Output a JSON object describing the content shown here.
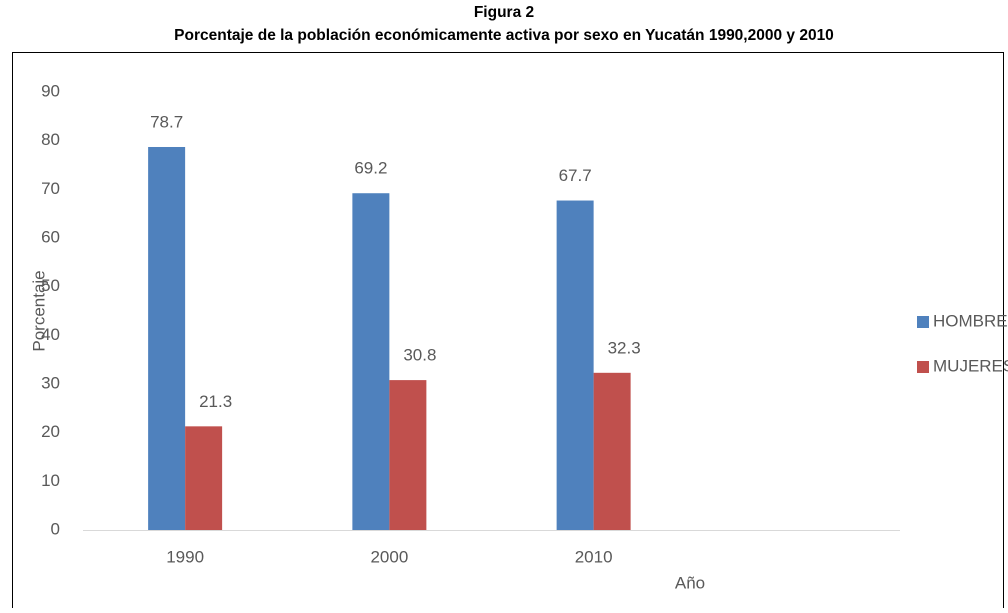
{
  "chart_data": {
    "type": "bar",
    "title": "Figura 2",
    "subtitle": "Porcentaje de la población económicamente activa por sexo en Yucatán 1990,2000 y 2010",
    "x_label": "Año",
    "y_label": "Porcentaje",
    "categories": [
      "1990",
      "2000",
      "2010",
      null
    ],
    "series": [
      {
        "name": "HOMBRES",
        "color": "#4f81bd",
        "values": [
          78.7,
          69.2,
          67.7,
          null
        ]
      },
      {
        "name": "MUJERES",
        "color": "#c0504d",
        "values": [
          21.3,
          30.8,
          32.3,
          null
        ]
      }
    ],
    "ylim": [
      0,
      90
    ],
    "yticks": [
      0,
      10,
      20,
      30,
      40,
      50,
      60,
      70,
      80,
      90
    ],
    "legend": "right"
  }
}
